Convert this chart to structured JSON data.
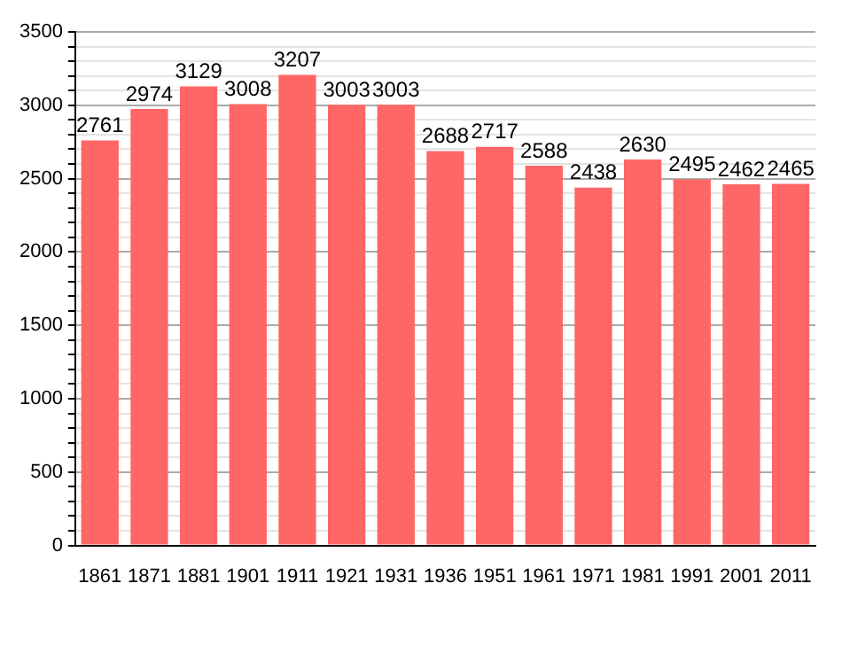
{
  "chart_data": {
    "type": "bar",
    "categories": [
      "1861",
      "1871",
      "1881",
      "1901",
      "1911",
      "1921",
      "1931",
      "1936",
      "1951",
      "1961",
      "1971",
      "1981",
      "1991",
      "2001",
      "2011"
    ],
    "values": [
      2761,
      2974,
      3129,
      3008,
      3207,
      3003,
      3003,
      2688,
      2717,
      2588,
      2438,
      2630,
      2495,
      2462,
      2465
    ],
    "color": "#ff6666",
    "ylim": [
      0,
      3500
    ],
    "yticks": [
      0,
      {
        "value": 100,
        "label": null
      },
      {
        "value": 200,
        "label": null
      },
      {
        "value": 300,
        "label": null
      },
      {
        "value": 400,
        "label": null
      },
      500,
      {
        "value": 600,
        "label": null
      },
      {
        "value": 700,
        "label": null
      },
      {
        "value": 800,
        "label": null
      },
      {
        "value": 900,
        "label": null
      },
      1000,
      {
        "value": 1100,
        "label": null
      },
      {
        "value": 1200,
        "label": null
      },
      {
        "value": 1300,
        "label": null
      },
      {
        "value": 1400,
        "label": null
      },
      1500,
      {
        "value": 1600,
        "label": null
      },
      {
        "value": 1700,
        "label": null
      },
      {
        "value": 1800,
        "label": null
      },
      {
        "value": 1900,
        "label": null
      },
      2000,
      {
        "value": 2100,
        "label": null
      },
      {
        "value": 2200,
        "label": null
      },
      {
        "value": 2300,
        "label": null
      },
      {
        "value": 2400,
        "label": null
      },
      2500,
      {
        "value": 2600,
        "label": null
      },
      {
        "value": 2700,
        "label": null
      },
      {
        "value": 2800,
        "label": null
      },
      {
        "value": 2900,
        "label": null
      },
      3000,
      {
        "value": 3100,
        "label": null
      },
      {
        "value": 3200,
        "label": null
      },
      {
        "value": 3300,
        "label": null
      },
      {
        "value": 3400,
        "label": null
      },
      3500
    ],
    "grid": "y",
    "data_labels": true
  }
}
